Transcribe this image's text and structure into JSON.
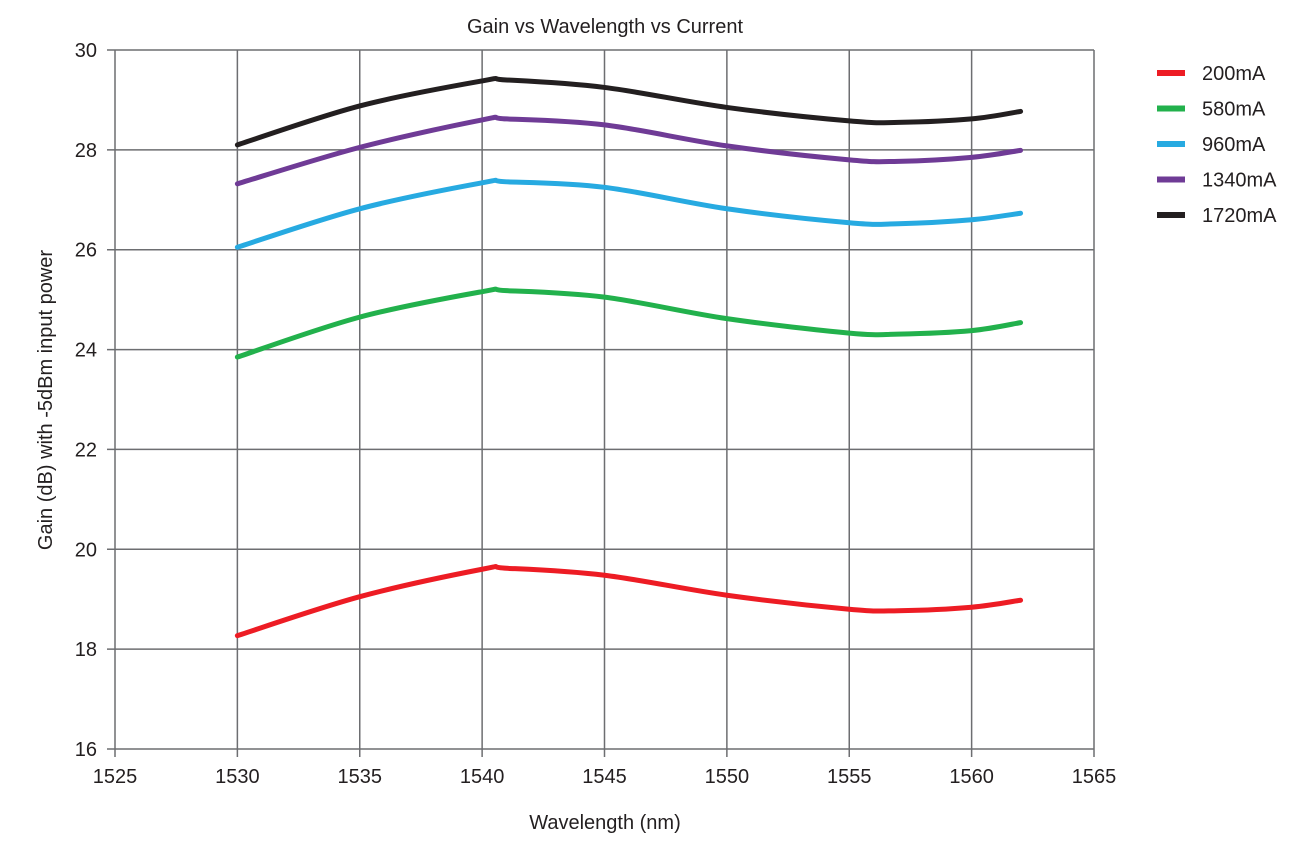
{
  "chart_data": {
    "type": "line",
    "title": "Gain vs Wavelength vs Current",
    "xlabel": "Wavelength (nm)",
    "ylabel": "Gain (dB) with -5dBm input power",
    "xlim": [
      1525,
      1565
    ],
    "ylim": [
      16,
      30
    ],
    "xticks": [
      1525,
      1530,
      1535,
      1540,
      1545,
      1550,
      1555,
      1560,
      1565
    ],
    "yticks": [
      16,
      18,
      20,
      22,
      24,
      26,
      28,
      30
    ],
    "grid": true,
    "legend_position": "right",
    "x": [
      1530,
      1535,
      1540,
      1541,
      1545,
      1550,
      1555,
      1557,
      1560,
      1562
    ],
    "series": [
      {
        "name": "200mA",
        "color": "#ed1c24",
        "values": [
          18.27,
          19.05,
          19.6,
          19.62,
          19.48,
          19.08,
          18.8,
          18.77,
          18.84,
          18.98
        ]
      },
      {
        "name": "580mA",
        "color": "#22b14c",
        "values": [
          23.85,
          24.65,
          25.16,
          25.18,
          25.05,
          24.62,
          24.33,
          24.31,
          24.38,
          24.54
        ]
      },
      {
        "name": "960mA",
        "color": "#27aae1",
        "values": [
          26.05,
          26.82,
          27.34,
          27.36,
          27.25,
          26.82,
          26.54,
          26.52,
          26.6,
          26.73
        ]
      },
      {
        "name": "1340mA",
        "color": "#6f3b96",
        "values": [
          27.32,
          28.05,
          28.6,
          28.62,
          28.5,
          28.08,
          27.8,
          27.77,
          27.85,
          27.99
        ]
      },
      {
        "name": "1720mA",
        "color": "#231f20",
        "values": [
          28.1,
          28.88,
          29.38,
          29.4,
          29.25,
          28.85,
          28.58,
          28.55,
          28.62,
          28.77
        ]
      }
    ]
  }
}
